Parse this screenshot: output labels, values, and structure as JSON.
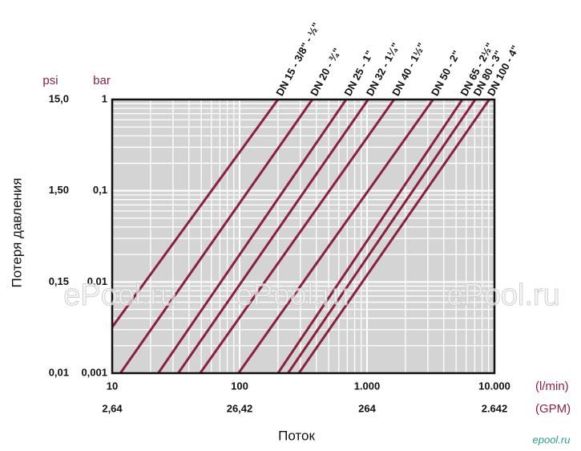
{
  "chart_data": {
    "type": "line",
    "ylabel": "Потеря давления",
    "xlabel": "Поток",
    "xscale": "log",
    "yscale": "log",
    "xlim": [
      10,
      10000
    ],
    "ylim": [
      0.001,
      1
    ],
    "xticks": [
      10,
      100,
      {
        "value": 1000,
        "label": "1.000"
      },
      {
        "value": 10000,
        "label": "10.000"
      }
    ],
    "x2ticks": [
      {
        "value": 10,
        "label": "2,64"
      },
      {
        "value": 100,
        "label": "26,42"
      },
      {
        "value": 1000,
        "label": "264"
      },
      {
        "value": 10000,
        "label": "2.642"
      }
    ],
    "x_unit": "(l/min)",
    "x2_unit": "(GPM)",
    "yticks": [
      1,
      {
        "value": 0.1,
        "label": "0,1"
      },
      {
        "value": 0.01,
        "label": "0,01"
      },
      {
        "value": 0.001,
        "label": "0,001"
      }
    ],
    "y2ticks": [
      {
        "value": 1,
        "label": "15,0"
      },
      {
        "value": 0.1,
        "label": "1,50"
      },
      {
        "value": 0.01,
        "label": "0,15"
      },
      {
        "value": 0.001,
        "label": "0,01"
      }
    ],
    "y_unit": "bar",
    "y2_unit": "psi",
    "xminorticks": [
      20,
      30,
      40,
      50,
      60,
      70,
      80,
      90,
      200,
      300,
      400,
      500,
      600,
      700,
      800,
      900,
      2000,
      3000,
      4000,
      5000,
      6000,
      7000,
      8000,
      9000
    ],
    "yminorticks": [
      0.002,
      0.003,
      0.004,
      0.005,
      0.006,
      0.007,
      0.008,
      0.009,
      0.02,
      0.03,
      0.04,
      0.05,
      0.06,
      0.07,
      0.08,
      0.09,
      0.2,
      0.3,
      0.4,
      0.5,
      0.6,
      0.7,
      0.8,
      0.9
    ],
    "grid": true,
    "background": "#d4d4d4",
    "series": [
      {
        "name": "DN 15 - 3/8\" - ½\"",
        "color": "#8b2040",
        "x": [
          10,
          200
        ],
        "values": [
          0.0032,
          1
        ]
      },
      {
        "name": "DN 20 - ¾\"",
        "color": "#8b2040",
        "x": [
          11.6,
          372
        ],
        "values": [
          0.001,
          1
        ]
      },
      {
        "name": "DN 25 - 1\"",
        "color": "#8b2040",
        "x": [
          23,
          686
        ],
        "values": [
          0.001,
          1
        ]
      },
      {
        "name": "DN 32 - 1¼\"",
        "color": "#8b2040",
        "x": [
          33,
          1020
        ],
        "values": [
          0.001,
          1
        ]
      },
      {
        "name": "DN 40 - 1½\"",
        "color": "#8b2040",
        "x": [
          49,
          1630
        ],
        "values": [
          0.001,
          1
        ]
      },
      {
        "name": "DN 50 - 2\"",
        "color": "#8b2040",
        "x": [
          98,
          3300
        ],
        "values": [
          0.001,
          1
        ]
      },
      {
        "name": "DN 65 - 2½\"",
        "color": "#8b2040",
        "x": [
          200,
          5600
        ],
        "values": [
          0.001,
          1
        ]
      },
      {
        "name": "DN 80 - 3\"",
        "color": "#8b2040",
        "x": [
          240,
          7070
        ],
        "values": [
          0.001,
          1
        ]
      },
      {
        "name": "DN 100 - 4\"",
        "color": "#8b2040",
        "x": [
          292,
          9100
        ],
        "values": [
          0.001,
          1
        ]
      }
    ],
    "watermarks": [
      "ePool.ru",
      "ePool.ru",
      "ePool.ru",
      "epool.ru"
    ]
  }
}
